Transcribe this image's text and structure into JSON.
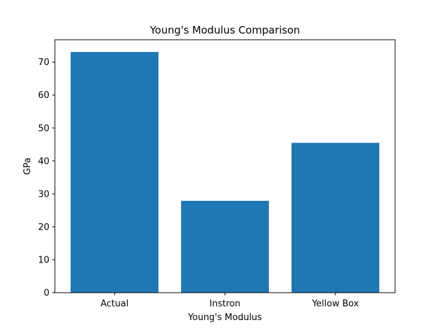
{
  "chart_data": {
    "type": "bar",
    "title": "Young's Modulus Comparison",
    "xlabel": "Young's Modulus",
    "ylabel": "GPa",
    "categories": [
      "Actual",
      "Instron",
      "Yellow Box"
    ],
    "values": [
      73.1,
      27.9,
      45.5
    ],
    "ylim": [
      0,
      76.8
    ],
    "yticks": [
      0,
      10,
      20,
      30,
      40,
      50,
      60,
      70
    ],
    "bar_color": "#1f77b4",
    "grid": false,
    "legend": "none"
  }
}
